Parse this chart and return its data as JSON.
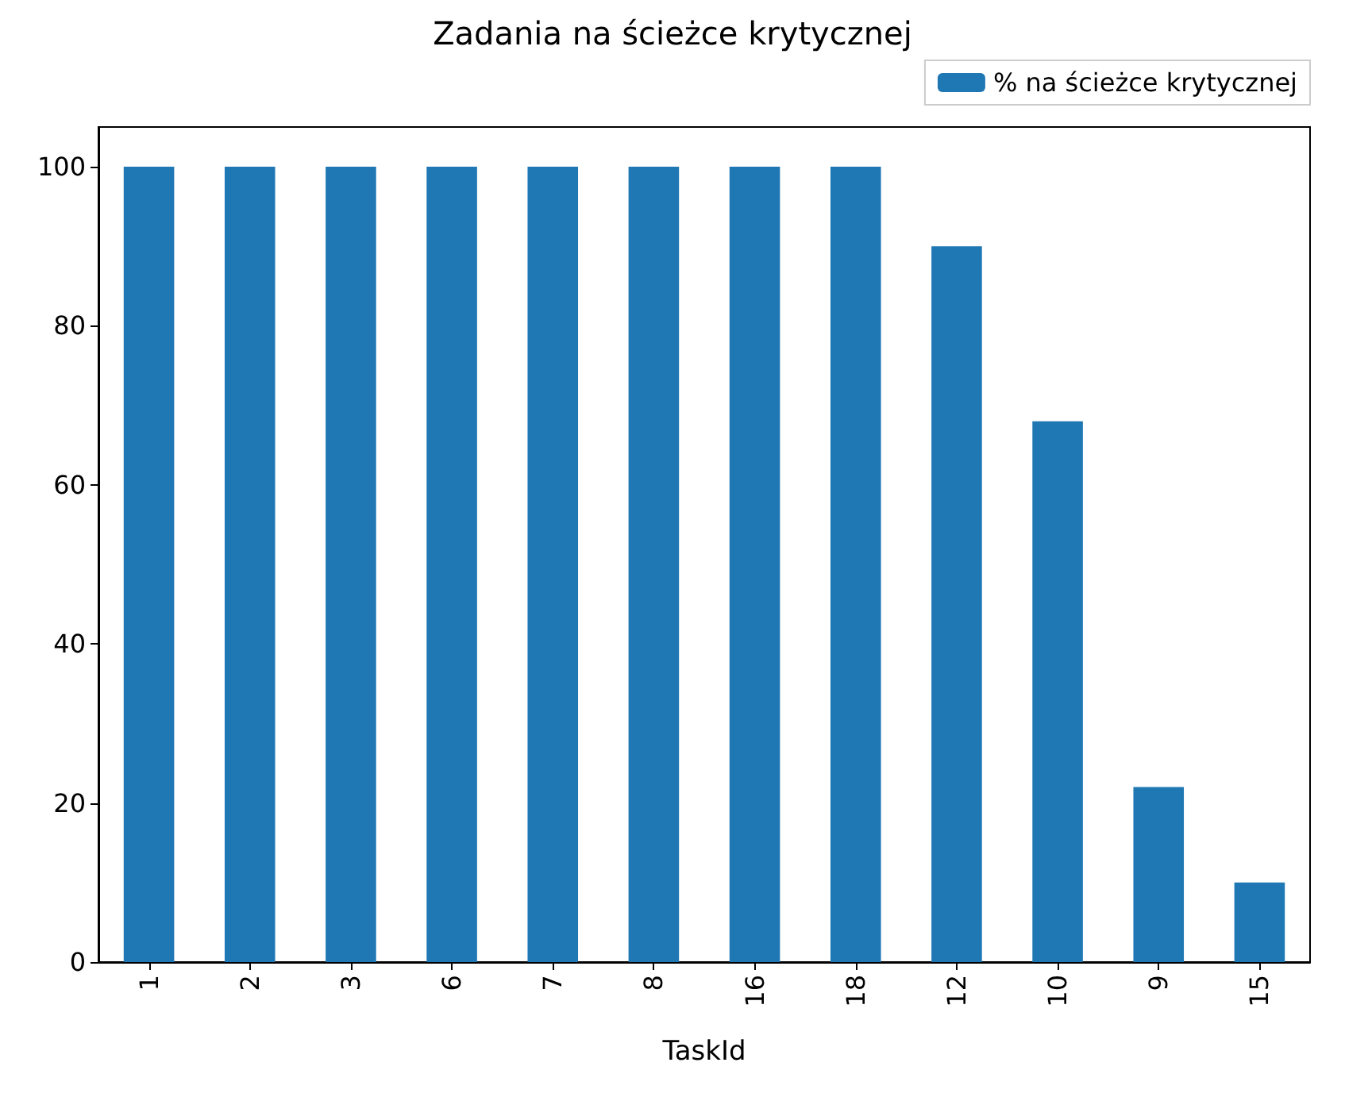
{
  "chart_data": {
    "type": "bar",
    "title": "Zadania na ścieżce krytycznej",
    "xlabel": "TaskId",
    "categories": [
      "1",
      "2",
      "3",
      "6",
      "7",
      "8",
      "16",
      "18",
      "12",
      "10",
      "9",
      "15"
    ],
    "series": [
      {
        "name": "% na ścieżce krytycznej",
        "color": "#1f77b4",
        "values": [
          100,
          100,
          100,
          100,
          100,
          100,
          100,
          100,
          90,
          68,
          22,
          10
        ]
      }
    ],
    "ylim": [
      0,
      105
    ],
    "yticks": [
      0,
      20,
      40,
      60,
      80,
      100
    ],
    "grid": false,
    "legend": "top right"
  }
}
